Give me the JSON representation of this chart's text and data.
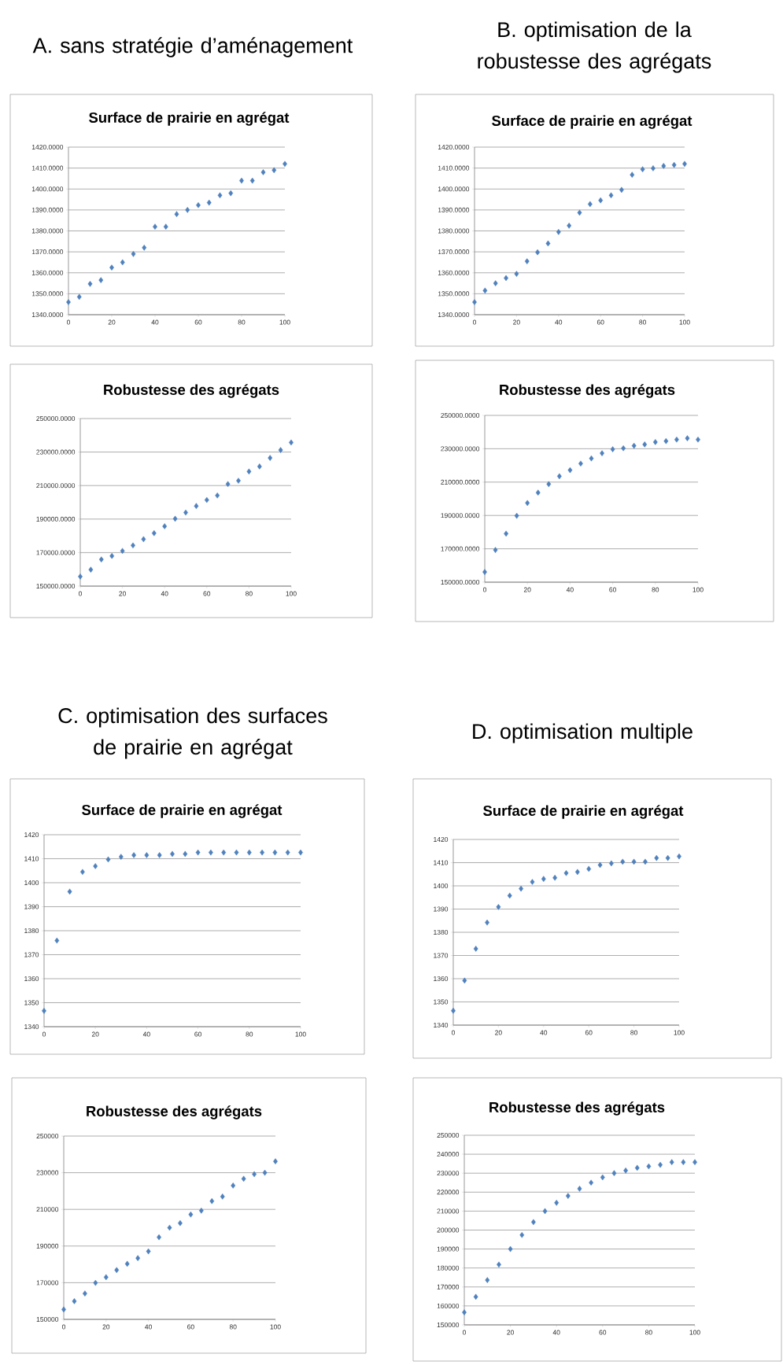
{
  "chart_data": [
    {
      "type": "scatter",
      "title": "Surface de prairie en agrégat",
      "annotations": [
        "A. sans stratégie d’aménagement"
      ],
      "x": [
        0,
        5,
        10,
        15,
        20,
        25,
        30,
        35,
        40,
        45,
        50,
        55,
        60,
        65,
        70,
        75,
        80,
        85,
        90,
        95,
        100
      ],
      "values": [
        1346,
        1348.5,
        1354.7,
        1356.5,
        1362.5,
        1365,
        1369,
        1372,
        1382,
        1382,
        1388,
        1390,
        1392.3,
        1393.5,
        1397,
        1398,
        1404,
        1404,
        1408,
        1409,
        1412
      ],
      "color": "#4f81bd",
      "marker": "diamond",
      "grid": "y",
      "xlim": [
        0,
        100
      ],
      "xticks": [
        0,
        20,
        40,
        60,
        80,
        100
      ],
      "ylim": [
        1340,
        1420
      ],
      "yticks": [
        {
          "value": 1340,
          "label": "1340.0000"
        },
        {
          "value": 1350,
          "label": "1350.0000"
        },
        {
          "value": 1360,
          "label": "1360.0000"
        },
        {
          "value": 1370,
          "label": "1370.0000"
        },
        {
          "value": 1380,
          "label": "1380.0000"
        },
        {
          "value": 1390,
          "label": "1390.0000"
        },
        {
          "value": 1400,
          "label": "1400.0000"
        },
        {
          "value": 1410,
          "label": "1410.0000"
        },
        {
          "value": 1420,
          "label": "1420.0000"
        }
      ]
    },
    {
      "type": "scatter",
      "title": "Robustesse des agrégats",
      "x": [
        0,
        5,
        10,
        15,
        20,
        25,
        30,
        35,
        40,
        45,
        50,
        55,
        60,
        65,
        70,
        75,
        80,
        85,
        90,
        95,
        100
      ],
      "values": [
        155700,
        159800,
        165900,
        168000,
        171000,
        174300,
        178000,
        181600,
        185700,
        190200,
        193900,
        197800,
        201400,
        204100,
        210900,
        212900,
        218400,
        221400,
        226500,
        231200,
        235700
      ],
      "color": "#4f81bd",
      "marker": "diamond",
      "grid": "y",
      "xlim": [
        0,
        100
      ],
      "xticks": [
        0,
        20,
        40,
        60,
        80,
        100
      ],
      "ylim": [
        150000,
        250000
      ],
      "yticks": [
        {
          "value": 150000,
          "label": "150000.0000"
        },
        {
          "value": 170000,
          "label": "170000.0000"
        },
        {
          "value": 190000,
          "label": "190000.0000"
        },
        {
          "value": 210000,
          "label": "210000.0000"
        },
        {
          "value": 230000,
          "label": "230000.0000"
        },
        {
          "value": 250000,
          "label": "250000.0000"
        }
      ]
    },
    {
      "type": "scatter",
      "title": "Surface de prairie en agrégat",
      "annotations": [
        "B. optimisation de la robustesse des agrégats"
      ],
      "x": [
        0,
        5,
        10,
        15,
        20,
        25,
        30,
        35,
        40,
        45,
        50,
        55,
        60,
        65,
        70,
        75,
        80,
        85,
        90,
        95,
        100
      ],
      "values": [
        1346,
        1351.5,
        1355,
        1357.5,
        1359.5,
        1365.5,
        1369.8,
        1374,
        1379.5,
        1382.5,
        1388.7,
        1392.8,
        1394.6,
        1397,
        1399.6,
        1406.8,
        1409.4,
        1409.9,
        1411,
        1411.5,
        1412
      ],
      "color": "#4f81bd",
      "marker": "diamond",
      "grid": "y",
      "xlim": [
        0,
        100
      ],
      "xticks": [
        0,
        20,
        40,
        60,
        80,
        100
      ],
      "ylim": [
        1340,
        1420
      ],
      "yticks": [
        {
          "value": 1340,
          "label": "1340.0000"
        },
        {
          "value": 1350,
          "label": "1350.0000"
        },
        {
          "value": 1360,
          "label": "1360.0000"
        },
        {
          "value": 1370,
          "label": "1370.0000"
        },
        {
          "value": 1380,
          "label": "1380.0000"
        },
        {
          "value": 1390,
          "label": "1390.0000"
        },
        {
          "value": 1400,
          "label": "1400.0000"
        },
        {
          "value": 1410,
          "label": "1410.0000"
        },
        {
          "value": 1420,
          "label": "1420.0000"
        }
      ]
    },
    {
      "type": "scatter",
      "title": "Robustesse des agrégats",
      "x": [
        0,
        5,
        10,
        15,
        20,
        25,
        30,
        35,
        40,
        45,
        50,
        55,
        60,
        65,
        70,
        75,
        80,
        85,
        90,
        95,
        100
      ],
      "values": [
        156100,
        169300,
        179100,
        189800,
        197500,
        203700,
        208800,
        213500,
        217200,
        221100,
        224200,
        227300,
        229700,
        230300,
        231800,
        232600,
        234000,
        234600,
        235500,
        236300,
        235500
      ],
      "color": "#4f81bd",
      "marker": "diamond",
      "grid": "y",
      "xlim": [
        0,
        100
      ],
      "xticks": [
        0,
        20,
        40,
        60,
        80,
        100
      ],
      "ylim": [
        150000,
        250000
      ],
      "yticks": [
        {
          "value": 150000,
          "label": "150000.0000"
        },
        {
          "value": 170000,
          "label": "170000.0000"
        },
        {
          "value": 190000,
          "label": "190000.0000"
        },
        {
          "value": 210000,
          "label": "210000.0000"
        },
        {
          "value": 230000,
          "label": "230000.0000"
        },
        {
          "value": 250000,
          "label": "250000.0000"
        }
      ]
    },
    {
      "type": "scatter",
      "title": "Surface de prairie en agrégat",
      "annotations": [
        "C. optimisation des surfaces de prairie en agrégat"
      ],
      "x": [
        0,
        5,
        10,
        15,
        20,
        25,
        30,
        35,
        40,
        45,
        50,
        55,
        60,
        65,
        70,
        75,
        80,
        85,
        90,
        95,
        100
      ],
      "values": [
        1346.6,
        1375.9,
        1396.3,
        1404.5,
        1406.9,
        1409.7,
        1410.8,
        1411.5,
        1411.5,
        1411.5,
        1412,
        1412,
        1412.6,
        1412.6,
        1412.6,
        1412.6,
        1412.6,
        1412.6,
        1412.6,
        1412.6,
        1412.6
      ],
      "color": "#4f81bd",
      "marker": "diamond",
      "grid": "y",
      "xlim": [
        0,
        100
      ],
      "xticks": [
        0,
        20,
        40,
        60,
        80,
        100
      ],
      "ylim": [
        1340,
        1420
      ],
      "yticks": [
        1340,
        1350,
        1360,
        1370,
        1380,
        1390,
        1400,
        1410,
        1420
      ]
    },
    {
      "type": "scatter",
      "title": "Robustesse des agrégats",
      "x": [
        0,
        5,
        10,
        15,
        20,
        25,
        30,
        35,
        40,
        45,
        50,
        55,
        60,
        65,
        70,
        75,
        80,
        85,
        90,
        95,
        100
      ],
      "values": [
        155400,
        159900,
        164100,
        169900,
        173000,
        176900,
        180300,
        183400,
        187100,
        194800,
        200000,
        202500,
        207200,
        209300,
        214500,
        217000,
        223000,
        226700,
        229200,
        230000,
        236200
      ],
      "color": "#4f81bd",
      "marker": "diamond",
      "grid": "y",
      "xlim": [
        0,
        100
      ],
      "xticks": [
        0,
        20,
        40,
        60,
        80,
        100
      ],
      "ylim": [
        150000,
        250000
      ],
      "yticks": [
        150000,
        170000,
        190000,
        210000,
        230000,
        250000
      ]
    },
    {
      "type": "scatter",
      "title": "Surface de prairie en agrégat",
      "annotations": [
        "D. optimisation multiple"
      ],
      "x": [
        0,
        5,
        10,
        15,
        20,
        25,
        30,
        35,
        40,
        45,
        50,
        55,
        60,
        65,
        70,
        75,
        80,
        85,
        90,
        95,
        100
      ],
      "values": [
        1346.2,
        1359.2,
        1372.9,
        1384.2,
        1390.9,
        1395.8,
        1398.8,
        1401.7,
        1403,
        1403.5,
        1405.5,
        1406,
        1407.3,
        1409,
        1409.7,
        1410.4,
        1410.4,
        1410.4,
        1412,
        1412,
        1412.7
      ],
      "color": "#4f81bd",
      "marker": "diamond",
      "grid": "y",
      "xlim": [
        0,
        100
      ],
      "xticks": [
        0,
        20,
        40,
        60,
        80,
        100
      ],
      "ylim": [
        1340,
        1420
      ],
      "yticks": [
        1340,
        1350,
        1360,
        1370,
        1380,
        1390,
        1400,
        1410,
        1420
      ]
    },
    {
      "type": "scatter",
      "title": "Robustesse des agrégats",
      "x": [
        0,
        5,
        10,
        15,
        20,
        25,
        30,
        35,
        40,
        45,
        50,
        55,
        60,
        65,
        70,
        75,
        80,
        85,
        90,
        95,
        100
      ],
      "values": [
        156600,
        164800,
        173600,
        181800,
        190000,
        197400,
        204200,
        210000,
        214400,
        218000,
        221800,
        225000,
        227800,
        230000,
        231400,
        232800,
        233600,
        234400,
        235800,
        235800,
        235800
      ],
      "color": "#4f81bd",
      "marker": "diamond",
      "grid": "y",
      "xlim": [
        0,
        100
      ],
      "xticks": [
        0,
        20,
        40,
        60,
        80,
        100
      ],
      "ylim": [
        150000,
        250000
      ],
      "yticks": [
        150000,
        160000,
        170000,
        180000,
        190000,
        200000,
        210000,
        220000,
        230000,
        240000,
        250000
      ]
    }
  ]
}
